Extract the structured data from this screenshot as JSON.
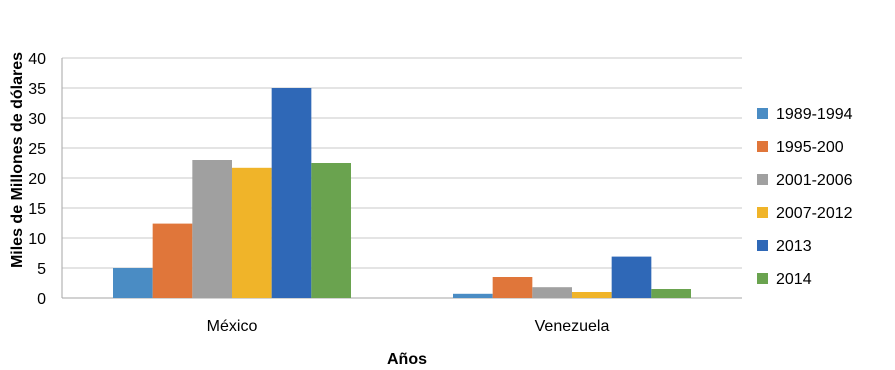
{
  "chart_data": {
    "type": "bar",
    "title": "",
    "xlabel": "Años",
    "ylabel": "Miles de Millones de dólares",
    "ylim": [
      0,
      40
    ],
    "yticks": [
      0,
      5,
      10,
      15,
      20,
      25,
      30,
      35,
      40
    ],
    "grid": true,
    "legend_position": "right",
    "categories": [
      "México",
      "Venezuela"
    ],
    "series": [
      {
        "name": "1989-1994",
        "color": "#4a8cc4",
        "values": [
          5.0,
          0.7
        ]
      },
      {
        "name": "1995-200",
        "color": "#e0763a",
        "values": [
          12.4,
          3.5
        ]
      },
      {
        "name": "2001-2006",
        "color": "#a0a0a0",
        "values": [
          23.0,
          1.8
        ]
      },
      {
        "name": "2007-2012",
        "color": "#f0b429",
        "values": [
          21.7,
          1.0
        ]
      },
      {
        "name": "2013",
        "color": "#2f68b7",
        "values": [
          35.0,
          6.9
        ]
      },
      {
        "name": "2014",
        "color": "#6aa34f",
        "values": [
          22.5,
          1.5
        ]
      }
    ]
  }
}
